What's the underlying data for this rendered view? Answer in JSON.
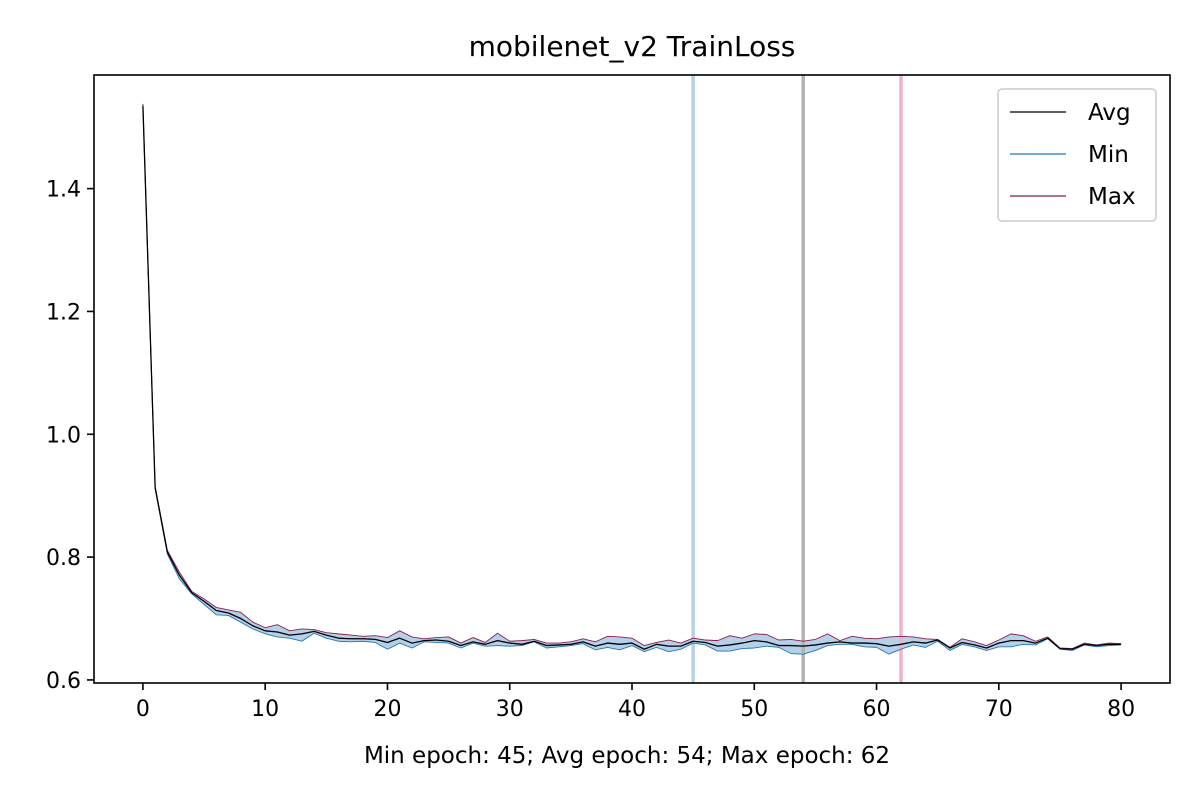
{
  "chart_data": {
    "type": "line",
    "title": "mobilenet_v2 TrainLoss",
    "xlabel": "Min epoch: 45; Avg epoch: 54; Max epoch: 62",
    "ylabel": "",
    "xlim": [
      -4,
      84
    ],
    "ylim": [
      0.595,
      1.585
    ],
    "x_ticks": [
      "0",
      "10",
      "20",
      "30",
      "40",
      "50",
      "60",
      "70",
      "80"
    ],
    "y_ticks": [
      "0.6",
      "0.8",
      "1.0",
      "1.2",
      "1.4"
    ],
    "grid": false,
    "legend_position": "top-right",
    "x": [
      0,
      1,
      2,
      3,
      4,
      5,
      6,
      7,
      8,
      9,
      10,
      11,
      12,
      13,
      14,
      15,
      16,
      17,
      18,
      19,
      20,
      21,
      22,
      23,
      24,
      25,
      26,
      27,
      28,
      29,
      30,
      31,
      32,
      33,
      34,
      35,
      36,
      37,
      38,
      39,
      40,
      41,
      42,
      43,
      44,
      45,
      46,
      47,
      48,
      49,
      50,
      51,
      52,
      53,
      54,
      55,
      56,
      57,
      58,
      59,
      60,
      61,
      62,
      63,
      64,
      65,
      66,
      67,
      68,
      69,
      70,
      71,
      72,
      73,
      74,
      75,
      76,
      77,
      78,
      79,
      80
    ],
    "series": [
      {
        "name": "Avg",
        "color": "#000000",
        "values": [
          1.535,
          0.913,
          0.808,
          0.77,
          0.742,
          0.728,
          0.713,
          0.709,
          0.7,
          0.688,
          0.68,
          0.678,
          0.673,
          0.675,
          0.679,
          0.673,
          0.668,
          0.667,
          0.667,
          0.666,
          0.661,
          0.668,
          0.66,
          0.664,
          0.665,
          0.663,
          0.656,
          0.662,
          0.658,
          0.664,
          0.66,
          0.658,
          0.663,
          0.656,
          0.657,
          0.658,
          0.662,
          0.655,
          0.66,
          0.658,
          0.66,
          0.65,
          0.658,
          0.655,
          0.655,
          0.663,
          0.661,
          0.655,
          0.657,
          0.66,
          0.664,
          0.662,
          0.656,
          0.656,
          0.655,
          0.657,
          0.66,
          0.662,
          0.66,
          0.66,
          0.659,
          0.655,
          0.658,
          0.662,
          0.66,
          0.665,
          0.652,
          0.661,
          0.657,
          0.652,
          0.66,
          0.664,
          0.664,
          0.66,
          0.668,
          0.651,
          0.65,
          0.658,
          0.656,
          0.658,
          0.658
        ]
      },
      {
        "name": "Min",
        "color": "#1f77b4",
        "values": [
          1.533,
          0.911,
          0.805,
          0.764,
          0.74,
          0.723,
          0.706,
          0.705,
          0.694,
          0.683,
          0.675,
          0.67,
          0.668,
          0.663,
          0.676,
          0.668,
          0.663,
          0.662,
          0.663,
          0.661,
          0.65,
          0.66,
          0.652,
          0.662,
          0.661,
          0.66,
          0.652,
          0.66,
          0.655,
          0.656,
          0.655,
          0.656,
          0.662,
          0.652,
          0.654,
          0.656,
          0.659,
          0.649,
          0.653,
          0.649,
          0.656,
          0.646,
          0.653,
          0.646,
          0.65,
          0.66,
          0.657,
          0.647,
          0.647,
          0.651,
          0.652,
          0.655,
          0.653,
          0.643,
          0.642,
          0.648,
          0.656,
          0.658,
          0.658,
          0.654,
          0.653,
          0.642,
          0.65,
          0.657,
          0.653,
          0.663,
          0.648,
          0.658,
          0.654,
          0.648,
          0.654,
          0.654,
          0.658,
          0.657,
          0.667,
          0.65,
          0.648,
          0.657,
          0.654,
          0.656,
          0.657
        ]
      },
      {
        "name": "Max",
        "color": "#8c1c4b",
        "values": [
          1.538,
          0.915,
          0.811,
          0.775,
          0.744,
          0.732,
          0.718,
          0.714,
          0.71,
          0.694,
          0.685,
          0.69,
          0.68,
          0.683,
          0.682,
          0.677,
          0.675,
          0.673,
          0.671,
          0.672,
          0.669,
          0.68,
          0.67,
          0.667,
          0.669,
          0.67,
          0.66,
          0.669,
          0.661,
          0.676,
          0.663,
          0.664,
          0.666,
          0.66,
          0.66,
          0.662,
          0.667,
          0.662,
          0.671,
          0.67,
          0.668,
          0.656,
          0.661,
          0.665,
          0.66,
          0.668,
          0.665,
          0.664,
          0.672,
          0.668,
          0.675,
          0.674,
          0.665,
          0.666,
          0.663,
          0.666,
          0.675,
          0.664,
          0.671,
          0.668,
          0.667,
          0.67,
          0.671,
          0.67,
          0.667,
          0.666,
          0.653,
          0.667,
          0.662,
          0.656,
          0.665,
          0.675,
          0.672,
          0.663,
          0.67,
          0.652,
          0.651,
          0.66,
          0.657,
          0.66,
          0.659
        ]
      }
    ],
    "vlines": [
      {
        "x": 45,
        "color": "#b7d0e3"
      },
      {
        "x": 54,
        "color": "#b3b3b3"
      },
      {
        "x": 62,
        "color": "#edb3c8"
      }
    ],
    "band_fill_color": "#9cc2e1"
  }
}
